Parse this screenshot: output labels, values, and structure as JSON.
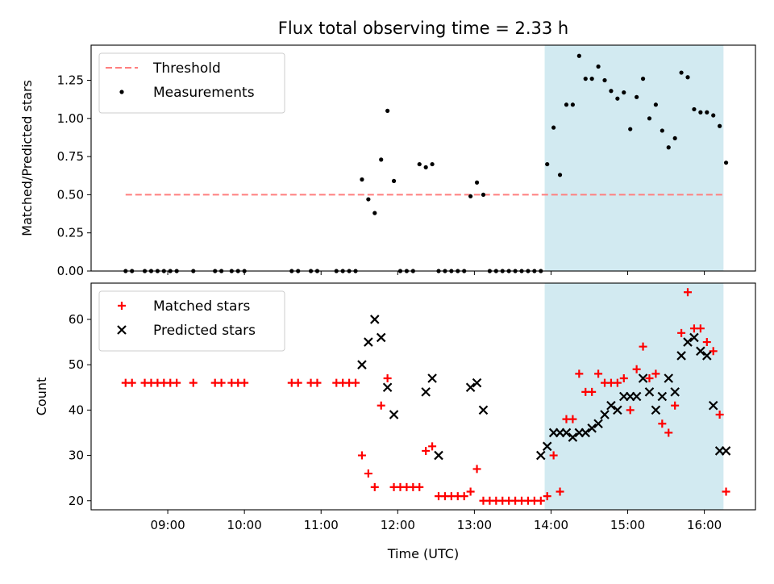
{
  "chart_data": [
    {
      "type": "scatter",
      "title": "Flux total observing time = 2.33 h",
      "ylabel": "Matched/Predicted stars",
      "xlabel": "",
      "ylim": [
        0,
        1.48
      ],
      "yticks": [
        "0.00",
        "0.25",
        "0.50",
        "0.75",
        "1.00",
        "1.25"
      ],
      "legend_placement": "top-left",
      "highlight_span": {
        "start": "13:55",
        "end": "16:15",
        "color": "#add8e6"
      },
      "threshold": {
        "name": "Threshold",
        "value": 0.5,
        "x_start": "08:27",
        "x_end": "16:15",
        "color": "#ff7f7f"
      },
      "series": [
        {
          "name": "Measurements",
          "marker": "dot",
          "color": "#000000",
          "x": [
            "08:27",
            "08:32",
            "08:42",
            "08:47",
            "08:52",
            "08:57",
            "09:02",
            "09:07",
            "09:20",
            "09:37",
            "09:42",
            "09:50",
            "09:55",
            "10:00",
            "10:37",
            "10:42",
            "10:52",
            "10:57",
            "11:12",
            "11:17",
            "11:22",
            "11:27",
            "11:32",
            "11:37",
            "11:42",
            "11:47",
            "11:52",
            "11:57",
            "12:02",
            "12:07",
            "12:12",
            "12:17",
            "12:22",
            "12:27",
            "12:32",
            "12:37",
            "12:42",
            "12:47",
            "12:52",
            "12:57",
            "13:02",
            "13:07",
            "13:12",
            "13:17",
            "13:22",
            "13:27",
            "13:32",
            "13:37",
            "13:42",
            "13:47",
            "13:52",
            "13:57",
            "14:02",
            "14:07",
            "14:12",
            "14:17",
            "14:22",
            "14:27",
            "14:32",
            "14:37",
            "14:42",
            "14:47",
            "14:52",
            "14:57",
            "15:02",
            "15:07",
            "15:12",
            "15:17",
            "15:22",
            "15:27",
            "15:32",
            "15:37",
            "15:42",
            "15:47",
            "15:52",
            "15:57",
            "16:02",
            "16:07",
            "16:12",
            "16:17"
          ],
          "y": [
            0,
            0,
            0,
            0,
            0,
            0,
            0,
            0,
            0,
            0,
            0,
            0,
            0,
            0,
            0,
            0,
            0,
            0,
            0,
            0,
            0,
            0,
            0.6,
            0.47,
            0.38,
            0.73,
            1.05,
            0.59,
            0,
            0,
            0,
            0.7,
            0.68,
            0.7,
            0,
            0,
            0,
            0,
            0,
            0.49,
            0.58,
            0.5,
            0,
            0,
            0,
            0,
            0,
            0,
            0,
            0,
            0,
            0.7,
            0.94,
            0.63,
            1.09,
            1.09,
            1.41,
            1.26,
            1.26,
            1.34,
            1.25,
            1.18,
            1.13,
            1.17,
            0.93,
            1.14,
            1.26,
            1.0,
            1.09,
            0.92,
            0.81,
            0.87,
            1.3,
            1.27,
            1.06,
            1.04,
            1.04,
            1.02,
            0.95,
            0.71
          ]
        }
      ]
    },
    {
      "type": "scatter",
      "title": "",
      "ylabel": "Count",
      "xlabel": "Time (UTC)",
      "ylim": [
        18,
        68
      ],
      "yticks": [
        "20",
        "30",
        "40",
        "50",
        "60"
      ],
      "xticks": [
        "09:00",
        "10:00",
        "11:00",
        "12:00",
        "13:00",
        "14:00",
        "15:00",
        "16:00"
      ],
      "legend_placement": "top-left",
      "highlight_span": {
        "start": "13:55",
        "end": "16:15",
        "color": "#add8e6"
      },
      "series": [
        {
          "name": "Matched stars",
          "marker": "plus",
          "color": "#ff0000",
          "x": [
            "08:27",
            "08:32",
            "08:42",
            "08:47",
            "08:52",
            "08:57",
            "09:02",
            "09:07",
            "09:20",
            "09:37",
            "09:42",
            "09:50",
            "09:55",
            "10:00",
            "10:37",
            "10:42",
            "10:52",
            "10:57",
            "11:12",
            "11:17",
            "11:22",
            "11:27",
            "11:32",
            "11:37",
            "11:42",
            "11:47",
            "11:52",
            "11:57",
            "12:02",
            "12:07",
            "12:12",
            "12:17",
            "12:22",
            "12:27",
            "12:32",
            "12:37",
            "12:42",
            "12:47",
            "12:52",
            "12:57",
            "13:02",
            "13:07",
            "13:12",
            "13:17",
            "13:22",
            "13:27",
            "13:32",
            "13:37",
            "13:42",
            "13:47",
            "13:52",
            "13:57",
            "14:02",
            "14:07",
            "14:12",
            "14:17",
            "14:22",
            "14:27",
            "14:32",
            "14:37",
            "14:42",
            "14:47",
            "14:52",
            "14:57",
            "15:02",
            "15:07",
            "15:12",
            "15:17",
            "15:22",
            "15:27",
            "15:32",
            "15:37",
            "15:42",
            "15:47",
            "15:52",
            "15:57",
            "16:02",
            "16:07",
            "16:12",
            "16:17"
          ],
          "y": [
            46,
            46,
            46,
            46,
            46,
            46,
            46,
            46,
            46,
            46,
            46,
            46,
            46,
            46,
            46,
            46,
            46,
            46,
            46,
            46,
            46,
            46,
            30,
            26,
            23,
            41,
            47,
            23,
            23,
            23,
            23,
            23,
            31,
            32,
            21,
            21,
            21,
            21,
            21,
            22,
            27,
            20,
            20,
            20,
            20,
            20,
            20,
            20,
            20,
            20,
            20,
            21,
            30,
            22,
            38,
            38,
            48,
            44,
            44,
            48,
            46,
            46,
            46,
            47,
            40,
            49,
            54,
            47,
            48,
            37,
            35,
            41,
            57,
            66,
            58,
            58,
            55,
            53,
            39,
            22
          ]
        },
        {
          "name": "Predicted stars",
          "marker": "x",
          "color": "#000000",
          "x": [
            "11:32",
            "11:37",
            "11:42",
            "11:47",
            "11:52",
            "11:57",
            "12:22",
            "12:27",
            "12:32",
            "12:57",
            "13:02",
            "13:07",
            "13:52",
            "13:57",
            "14:02",
            "14:07",
            "14:12",
            "14:17",
            "14:22",
            "14:27",
            "14:32",
            "14:37",
            "14:42",
            "14:47",
            "14:52",
            "14:57",
            "15:02",
            "15:07",
            "15:12",
            "15:17",
            "15:22",
            "15:27",
            "15:32",
            "15:37",
            "15:42",
            "15:47",
            "15:52",
            "15:57",
            "16:02",
            "16:07",
            "16:12",
            "16:17"
          ],
          "y": [
            50,
            55,
            60,
            56,
            45,
            39,
            44,
            47,
            30,
            45,
            46,
            40,
            30,
            32,
            35,
            35,
            35,
            34,
            35,
            35,
            36,
            37,
            39,
            41,
            40,
            43,
            43,
            43,
            47,
            44,
            40,
            43,
            47,
            44,
            52,
            55,
            56,
            53,
            52,
            41,
            31,
            31
          ]
        }
      ]
    }
  ]
}
